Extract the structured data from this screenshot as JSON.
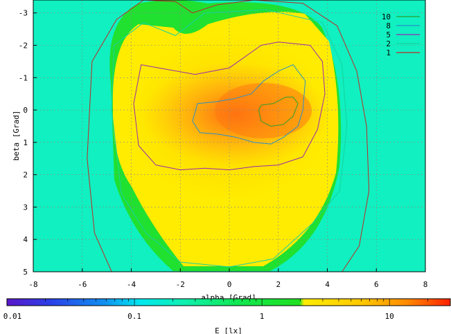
{
  "chart_data": {
    "type": "heatmap",
    "title": "",
    "xlabel": "alpha [Grad]",
    "ylabel": "beta [Grad]",
    "colorbar_label": "E [lx]",
    "xlim": [
      -8,
      8
    ],
    "ylim": [
      -3.4,
      5
    ],
    "y_axis_inverted": true,
    "x_ticks": [
      "-8",
      "-6",
      "-4",
      "-2",
      "0",
      "2",
      "4",
      "6",
      "8"
    ],
    "y_ticks": [
      "-3",
      "-2",
      "-1",
      "0",
      "1",
      "2",
      "3",
      "4",
      "5"
    ],
    "colorbar_ticks": [
      "0.01",
      "0.1",
      "1",
      "10"
    ],
    "colorbar_scale": "log",
    "colorbar_range": [
      0.01,
      30
    ],
    "grid": true,
    "legend_position": "top-right",
    "contours": [
      {
        "level": "10",
        "color": "#2e9e2e",
        "points": [
          [
            1.2,
            0.0
          ],
          [
            1.3,
            -0.15
          ],
          [
            1.8,
            -0.2
          ],
          [
            2.3,
            -0.4
          ],
          [
            2.6,
            -0.4
          ],
          [
            2.8,
            -0.2
          ],
          [
            2.6,
            0.2
          ],
          [
            2.2,
            0.45
          ],
          [
            1.7,
            0.5
          ],
          [
            1.3,
            0.35
          ],
          [
            1.2,
            0.0
          ]
        ]
      },
      {
        "level": "8",
        "color": "#2a8fc8",
        "points": [
          [
            -1.5,
            0.35
          ],
          [
            -1.3,
            -0.2
          ],
          [
            -0.6,
            -0.25
          ],
          [
            0.2,
            -0.35
          ],
          [
            0.9,
            -0.5
          ],
          [
            1.4,
            -0.9
          ],
          [
            2.0,
            -1.2
          ],
          [
            2.6,
            -1.4
          ],
          [
            3.1,
            -0.9
          ],
          [
            3.0,
            0.0
          ],
          [
            2.8,
            0.5
          ],
          [
            2.2,
            0.85
          ],
          [
            1.7,
            1.05
          ],
          [
            1.0,
            1.0
          ],
          [
            0.3,
            0.85
          ],
          [
            -0.4,
            0.75
          ],
          [
            -1.2,
            0.7
          ],
          [
            -1.5,
            0.35
          ]
        ]
      },
      {
        "level": "5",
        "color": "#9a28b0",
        "points": [
          [
            -3.9,
            -0.2
          ],
          [
            -3.6,
            -1.4
          ],
          [
            -2.5,
            -1.25
          ],
          [
            -1.4,
            -1.1
          ],
          [
            0.0,
            -1.3
          ],
          [
            1.3,
            -2.0
          ],
          [
            2.0,
            -2.1
          ],
          [
            3.3,
            -2.0
          ],
          [
            3.8,
            -1.5
          ],
          [
            3.9,
            -0.5
          ],
          [
            3.6,
            0.6
          ],
          [
            3.0,
            1.45
          ],
          [
            2.0,
            1.7
          ],
          [
            1.0,
            1.75
          ],
          [
            0.0,
            1.85
          ],
          [
            -1.0,
            1.8
          ],
          [
            -2.0,
            1.85
          ],
          [
            -3.0,
            1.7
          ],
          [
            -3.7,
            1.1
          ],
          [
            -3.9,
            -0.2
          ]
        ]
      },
      {
        "level": "2",
        "color": "#14d4a0",
        "points": [
          [
            -4.8,
            0.0
          ],
          [
            -4.7,
            -2.0
          ],
          [
            -3.5,
            -2.7
          ],
          [
            -2.2,
            -2.3
          ],
          [
            -1.0,
            -3.0
          ],
          [
            1.5,
            -3.1
          ],
          [
            3.8,
            -2.7
          ],
          [
            4.6,
            -1.4
          ],
          [
            4.8,
            0.5
          ],
          [
            4.5,
            2.5
          ],
          [
            3.4,
            3.5
          ],
          [
            1.8,
            4.6
          ],
          [
            0.0,
            4.85
          ],
          [
            -2.0,
            4.7
          ],
          [
            -3.4,
            3.8
          ],
          [
            -4.4,
            2.6
          ],
          [
            -4.8,
            0.0
          ]
        ]
      },
      {
        "level": "1",
        "color": "#c02828",
        "points": [
          [
            -5.8,
            1.5
          ],
          [
            -5.6,
            -1.5
          ],
          [
            -4.6,
            -2.8
          ],
          [
            -3.5,
            -3.4
          ],
          [
            -2.2,
            -3.35
          ],
          [
            -1.5,
            -3.0
          ],
          [
            -0.5,
            -3.25
          ],
          [
            1.0,
            -3.4
          ],
          [
            3.0,
            -3.3
          ],
          [
            4.4,
            -2.6
          ],
          [
            5.2,
            -1.2
          ],
          [
            5.6,
            0.5
          ],
          [
            5.7,
            2.5
          ],
          [
            5.3,
            4.2
          ],
          [
            4.6,
            5.0
          ],
          [
            -4.8,
            5.0
          ],
          [
            -5.5,
            3.8
          ],
          [
            -5.8,
            1.5
          ]
        ]
      }
    ]
  }
}
